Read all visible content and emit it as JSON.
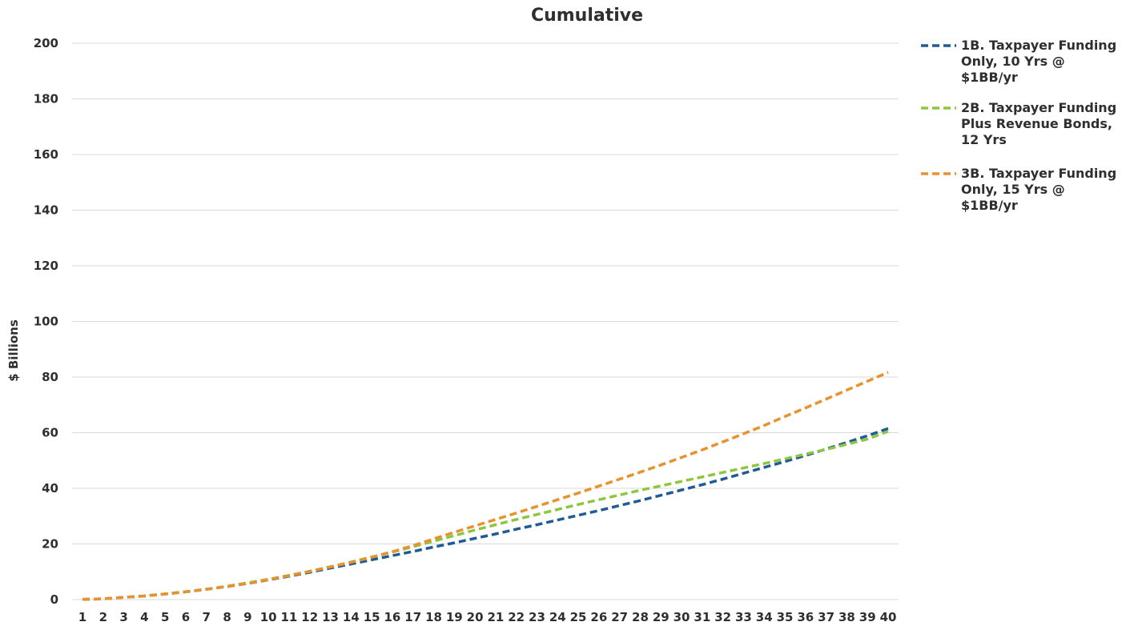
{
  "chart_data": {
    "type": "line",
    "title": "Cumulative",
    "xlabel": "",
    "ylabel": "$ Billions",
    "ylim": [
      0,
      200
    ],
    "yticks": [
      0,
      20,
      40,
      60,
      80,
      100,
      120,
      140,
      160,
      180,
      200
    ],
    "grid": true,
    "legend_position": "right",
    "x": [
      1,
      2,
      3,
      4,
      5,
      6,
      7,
      8,
      9,
      10,
      11,
      12,
      13,
      14,
      15,
      16,
      17,
      18,
      19,
      20,
      21,
      22,
      23,
      24,
      25,
      26,
      27,
      28,
      29,
      30,
      31,
      32,
      33,
      34,
      35,
      36,
      37,
      38,
      39,
      40
    ],
    "series": [
      {
        "name": "1B. Taxpayer Funding Only, 10 Yrs @ $1BB/yr",
        "legend_lines": [
          "1B. Taxpayer Funding",
          "Only, 10 Yrs @",
          "$1BB/yr"
        ],
        "color": "#1f5b96",
        "values": [
          0.1,
          0.3,
          0.8,
          1.3,
          2.0,
          2.8,
          3.7,
          4.7,
          5.8,
          7.1,
          8.4,
          9.8,
          11.3,
          12.8,
          14.3,
          15.8,
          17.3,
          18.9,
          20.4,
          22.0,
          23.6,
          25.3,
          26.9,
          28.6,
          30.3,
          32.0,
          33.8,
          35.6,
          37.5,
          39.4,
          41.3,
          43.3,
          45.4,
          47.5,
          49.6,
          51.8,
          54.1,
          56.5,
          58.9,
          61.5
        ]
      },
      {
        "name": "2B. Taxpayer Funding Plus Revenue Bonds, 12 Yrs",
        "legend_lines": [
          "2B. Taxpayer Funding",
          "Plus Revenue Bonds,",
          "12 Yrs"
        ],
        "color": "#8dc63f",
        "values": [
          0.1,
          0.3,
          0.8,
          1.3,
          2.0,
          2.8,
          3.7,
          4.8,
          6.0,
          7.3,
          8.7,
          10.2,
          11.8,
          13.5,
          15.3,
          17.1,
          19.0,
          21.0,
          23.0,
          25.0,
          26.9,
          28.8,
          30.6,
          32.4,
          34.2,
          35.9,
          37.6,
          39.3,
          40.9,
          42.5,
          44.1,
          45.7,
          47.3,
          48.9,
          50.6,
          52.3,
          54.0,
          55.8,
          57.7,
          60.5
        ]
      },
      {
        "name": "3B. Taxpayer Funding Only, 15 Yrs @ $1BB/yr",
        "legend_lines": [
          "3B. Taxpayer Funding",
          "Only, 15 Yrs @",
          "$1BB/yr"
        ],
        "color": "#e8912d",
        "values": [
          0.1,
          0.3,
          0.8,
          1.3,
          2.0,
          2.8,
          3.7,
          4.7,
          5.9,
          7.2,
          8.6,
          10.1,
          11.7,
          13.4,
          15.2,
          17.2,
          19.4,
          21.8,
          24.2,
          26.5,
          28.8,
          31.1,
          33.5,
          35.9,
          38.3,
          40.8,
          43.3,
          45.8,
          48.4,
          51.1,
          53.8,
          56.7,
          59.6,
          62.6,
          65.8,
          68.9,
          72.1,
          75.3,
          78.5,
          81.7
        ]
      }
    ]
  }
}
